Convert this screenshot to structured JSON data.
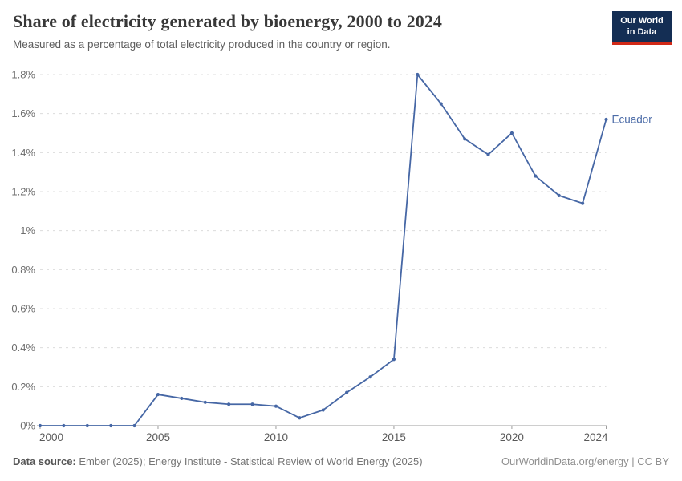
{
  "header": {
    "title": "Share of electricity generated by bioenergy, 2000 to 2024",
    "subtitle": "Measured as a percentage of total electricity produced in the country or region.",
    "logo": {
      "line1": "Our World",
      "line2": "in Data",
      "bg_color": "#142E54",
      "stripe_color": "#D12917"
    }
  },
  "chart_data": {
    "type": "line",
    "title": "Share of electricity generated by bioenergy, 2000 to 2024",
    "xlabel": "",
    "ylabel": "",
    "xlim": [
      2000,
      2024
    ],
    "ylim": [
      0,
      1.8
    ],
    "grid": "dashed-horizontal",
    "legend_position": "end-of-line",
    "x_ticks": [
      2000,
      2005,
      2010,
      2015,
      2020,
      2024
    ],
    "y_ticks": [
      {
        "value": 0,
        "label": "0%"
      },
      {
        "value": 0.2,
        "label": "0.2%"
      },
      {
        "value": 0.4,
        "label": "0.4%"
      },
      {
        "value": 0.6,
        "label": "0.6%"
      },
      {
        "value": 0.8,
        "label": "0.8%"
      },
      {
        "value": 1,
        "label": "1%"
      },
      {
        "value": 1.2,
        "label": "1.2%"
      },
      {
        "value": 1.4,
        "label": "1.4%"
      },
      {
        "value": 1.6,
        "label": "1.6%"
      },
      {
        "value": 1.8,
        "label": "1.8%"
      }
    ],
    "x": [
      2000,
      2001,
      2002,
      2003,
      2004,
      2005,
      2006,
      2007,
      2008,
      2009,
      2010,
      2011,
      2012,
      2013,
      2014,
      2015,
      2016,
      2017,
      2018,
      2019,
      2020,
      2021,
      2022,
      2023,
      2024
    ],
    "series": [
      {
        "name": "Ecuador",
        "color": "#4667A5",
        "label_color": "#4C6CA8",
        "values": [
          0,
          0,
          0,
          0,
          0,
          0.16,
          0.14,
          0.12,
          0.11,
          0.11,
          0.1,
          0.04,
          0.08,
          0.17,
          0.25,
          0.34,
          1.8,
          1.65,
          1.47,
          1.39,
          1.5,
          1.28,
          1.18,
          1.14,
          1.57
        ]
      }
    ],
    "axis_color": "#9e9e9e",
    "gridline_color": "#dcdcdc",
    "y_label_color": "#6e6e6e",
    "x_label_color": "#595959"
  },
  "footer": {
    "datasource_label": "Data source:",
    "datasource_text": " Ember (2025); Energy Institute - Statistical Review of World Energy (2025)",
    "right_text": "OurWorldinData.org/energy | CC BY"
  }
}
